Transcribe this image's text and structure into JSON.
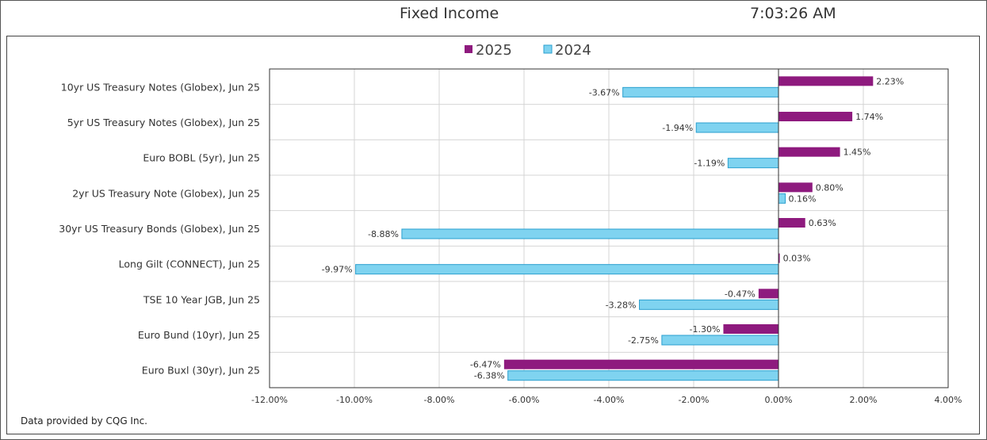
{
  "header": {
    "title": "Fixed Income",
    "time": "7:03:26 AM"
  },
  "footer": {
    "source": "Data provided by CQG Inc."
  },
  "colors": {
    "s2025": "#8e1a7e",
    "s2024": "#7fd3f0",
    "s2024_edge": "#2a9fcf",
    "grid": "#d4d4d4"
  },
  "chart_data": {
    "type": "bar",
    "orientation": "horizontal",
    "title": "",
    "xlabel": "",
    "ylabel": "",
    "xlim": [
      -12,
      4
    ],
    "x_ticks": [
      "-12.00%",
      "-10.00%",
      "-8.00%",
      "-6.00%",
      "-4.00%",
      "-2.00%",
      "0.00%",
      "2.00%",
      "4.00%"
    ],
    "legend_position": "top",
    "grid": true,
    "categories": [
      "10yr US Treasury Notes (Globex), Jun 25",
      "5yr US Treasury Notes (Globex), Jun 25",
      "Euro BOBL (5yr), Jun 25",
      "2yr US Treasury Note (Globex), Jun 25",
      "30yr US Treasury Bonds (Globex), Jun 25",
      "Long Gilt (CONNECT), Jun 25",
      "TSE 10 Year JGB, Jun 25",
      "Euro Bund (10yr), Jun 25",
      "Euro Buxl (30yr), Jun 25"
    ],
    "series": [
      {
        "name": "2025",
        "values": [
          2.23,
          1.74,
          1.45,
          0.8,
          0.63,
          0.03,
          -0.47,
          -1.3,
          -6.47
        ],
        "labels": [
          "2.23%",
          "1.74%",
          "1.45%",
          "0.80%",
          "0.63%",
          "0.03%",
          "-0.47%",
          "-1.30%",
          "-6.47%"
        ]
      },
      {
        "name": "2024",
        "values": [
          -3.67,
          -1.94,
          -1.19,
          0.16,
          -8.88,
          -9.97,
          -3.28,
          -2.75,
          -6.38
        ],
        "labels": [
          "-3.67%",
          "-1.94%",
          "-1.19%",
          "0.16%",
          "-8.88%",
          "-9.97%",
          "-3.28%",
          "-2.75%",
          "-6.38%"
        ]
      }
    ]
  }
}
